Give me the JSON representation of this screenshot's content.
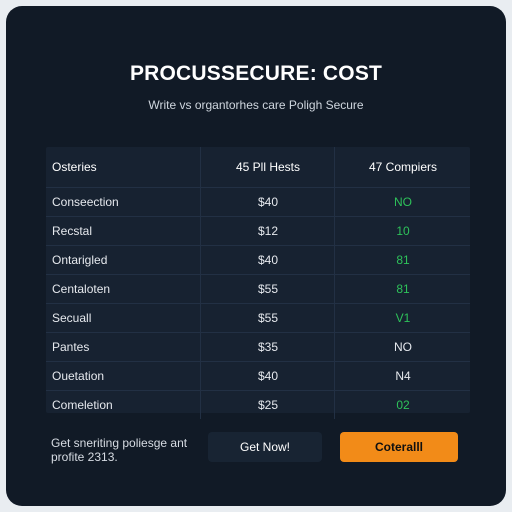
{
  "header": {
    "title": "PROCUSSECURE: COST",
    "subtitle": "Write vs organtorhes care Poligh Secure"
  },
  "table": {
    "columns": [
      "Osteries",
      "45 Pll Hests",
      "47 Compiers"
    ],
    "rows": [
      {
        "label": "Conseection",
        "price": "$40",
        "value": "NO",
        "color": "green"
      },
      {
        "label": "Recstal",
        "price": "$12",
        "value": "10",
        "color": "green"
      },
      {
        "label": "Ontarigled",
        "price": "$40",
        "value": "81",
        "color": "green"
      },
      {
        "label": "Centaloten",
        "price": "$55",
        "value": "81",
        "color": "green"
      },
      {
        "label": "Secuall",
        "price": "$55",
        "value": "V1",
        "color": "green"
      },
      {
        "label": "Pantes",
        "price": "$35",
        "value": "NO",
        "color": "white"
      },
      {
        "label": "Ouetation",
        "price": "$40",
        "value": "N4",
        "color": "white"
      },
      {
        "label": "Comeletion",
        "price": "$25",
        "value": "02",
        "color": "green"
      }
    ]
  },
  "footer": {
    "text_line1": "Get sneriting poliesge ant",
    "text_line2": "profite 2313.",
    "secondary_button": "Get Now!",
    "primary_button": "Coteralll"
  },
  "colors": {
    "background": "#111a26",
    "accent": "#f28b18",
    "positive": "#2ec25a"
  }
}
